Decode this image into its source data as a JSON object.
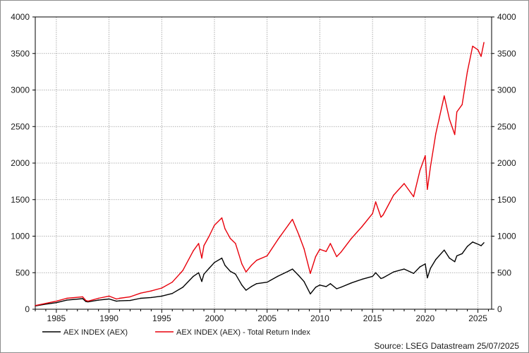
{
  "chart_data": {
    "type": "line",
    "title": "",
    "xlabel": "",
    "ylabel": "",
    "xlim": [
      1983.0,
      2026.3
    ],
    "ylim": [
      0,
      4000
    ],
    "x_ticks": [
      "1985",
      "1990",
      "1995",
      "2000",
      "2005",
      "2010",
      "2015",
      "2020",
      "2025"
    ],
    "y_ticks": [
      "0",
      "500",
      "1000",
      "1500",
      "2000",
      "2500",
      "3000",
      "3500",
      "4000"
    ],
    "grid": true,
    "legend_position": "bottom-left",
    "source": "Source: LSEG Datastream 25/07/2025",
    "series": [
      {
        "name": "AEX INDEX (AEX)",
        "color": "#000000",
        "points": [
          [
            1983.0,
            45
          ],
          [
            1984.0,
            70
          ],
          [
            1985.0,
            90
          ],
          [
            1986.0,
            125
          ],
          [
            1987.5,
            145
          ],
          [
            1987.8,
            105
          ],
          [
            1988.0,
            100
          ],
          [
            1989.0,
            125
          ],
          [
            1990.0,
            140
          ],
          [
            1990.7,
            110
          ],
          [
            1991.0,
            115
          ],
          [
            1992.0,
            120
          ],
          [
            1993.0,
            150
          ],
          [
            1994.0,
            160
          ],
          [
            1995.0,
            180
          ],
          [
            1996.0,
            215
          ],
          [
            1997.0,
            300
          ],
          [
            1998.0,
            450
          ],
          [
            1998.5,
            500
          ],
          [
            1998.8,
            380
          ],
          [
            1999.0,
            480
          ],
          [
            1999.5,
            560
          ],
          [
            2000.0,
            640
          ],
          [
            2000.7,
            700
          ],
          [
            2001.0,
            600
          ],
          [
            2001.5,
            520
          ],
          [
            2002.0,
            480
          ],
          [
            2002.6,
            330
          ],
          [
            2003.0,
            260
          ],
          [
            2003.5,
            310
          ],
          [
            2004.0,
            350
          ],
          [
            2005.0,
            370
          ],
          [
            2006.0,
            450
          ],
          [
            2007.0,
            520
          ],
          [
            2007.4,
            550
          ],
          [
            2008.0,
            460
          ],
          [
            2008.5,
            380
          ],
          [
            2009.1,
            210
          ],
          [
            2009.6,
            300
          ],
          [
            2010.0,
            330
          ],
          [
            2010.6,
            310
          ],
          [
            2011.0,
            350
          ],
          [
            2011.6,
            280
          ],
          [
            2012.0,
            300
          ],
          [
            2013.0,
            360
          ],
          [
            2014.0,
            410
          ],
          [
            2015.0,
            450
          ],
          [
            2015.3,
            500
          ],
          [
            2015.8,
            420
          ],
          [
            2016.0,
            430
          ],
          [
            2017.0,
            510
          ],
          [
            2018.0,
            550
          ],
          [
            2018.9,
            490
          ],
          [
            2019.5,
            580
          ],
          [
            2020.0,
            620
          ],
          [
            2020.2,
            430
          ],
          [
            2020.5,
            560
          ],
          [
            2021.0,
            680
          ],
          [
            2021.8,
            810
          ],
          [
            2022.3,
            700
          ],
          [
            2022.8,
            650
          ],
          [
            2023.0,
            730
          ],
          [
            2023.5,
            760
          ],
          [
            2024.0,
            860
          ],
          [
            2024.5,
            920
          ],
          [
            2025.0,
            890
          ],
          [
            2025.3,
            870
          ],
          [
            2025.57,
            910
          ]
        ]
      },
      {
        "name": "AEX INDEX (AEX) - Total Return Index",
        "color": "#e8000b",
        "points": [
          [
            1983.0,
            50
          ],
          [
            1984.0,
            80
          ],
          [
            1985.0,
            110
          ],
          [
            1986.0,
            150
          ],
          [
            1987.5,
            170
          ],
          [
            1987.8,
            120
          ],
          [
            1988.0,
            110
          ],
          [
            1989.0,
            150
          ],
          [
            1990.0,
            180
          ],
          [
            1990.7,
            140
          ],
          [
            1991.0,
            150
          ],
          [
            1992.0,
            170
          ],
          [
            1993.0,
            220
          ],
          [
            1994.0,
            250
          ],
          [
            1995.0,
            290
          ],
          [
            1996.0,
            370
          ],
          [
            1997.0,
            530
          ],
          [
            1998.0,
            800
          ],
          [
            1998.5,
            900
          ],
          [
            1998.8,
            700
          ],
          [
            1999.0,
            870
          ],
          [
            1999.5,
            1000
          ],
          [
            2000.0,
            1150
          ],
          [
            2000.7,
            1250
          ],
          [
            2001.0,
            1100
          ],
          [
            2001.5,
            970
          ],
          [
            2002.0,
            900
          ],
          [
            2002.6,
            620
          ],
          [
            2003.0,
            510
          ],
          [
            2003.5,
            600
          ],
          [
            2004.0,
            670
          ],
          [
            2005.0,
            730
          ],
          [
            2006.0,
            950
          ],
          [
            2007.0,
            1150
          ],
          [
            2007.4,
            1230
          ],
          [
            2008.0,
            1020
          ],
          [
            2008.5,
            830
          ],
          [
            2009.1,
            490
          ],
          [
            2009.6,
            720
          ],
          [
            2010.0,
            820
          ],
          [
            2010.6,
            790
          ],
          [
            2011.0,
            900
          ],
          [
            2011.6,
            720
          ],
          [
            2012.0,
            780
          ],
          [
            2013.0,
            970
          ],
          [
            2014.0,
            1130
          ],
          [
            2015.0,
            1310
          ],
          [
            2015.3,
            1470
          ],
          [
            2015.8,
            1260
          ],
          [
            2016.0,
            1290
          ],
          [
            2017.0,
            1560
          ],
          [
            2018.0,
            1720
          ],
          [
            2018.9,
            1540
          ],
          [
            2019.5,
            1900
          ],
          [
            2020.0,
            2100
          ],
          [
            2020.2,
            1640
          ],
          [
            2020.5,
            1950
          ],
          [
            2021.0,
            2400
          ],
          [
            2021.8,
            2920
          ],
          [
            2022.3,
            2600
          ],
          [
            2022.8,
            2390
          ],
          [
            2023.0,
            2700
          ],
          [
            2023.5,
            2800
          ],
          [
            2024.0,
            3250
          ],
          [
            2024.5,
            3600
          ],
          [
            2025.0,
            3550
          ],
          [
            2025.3,
            3460
          ],
          [
            2025.57,
            3650
          ]
        ]
      }
    ]
  }
}
